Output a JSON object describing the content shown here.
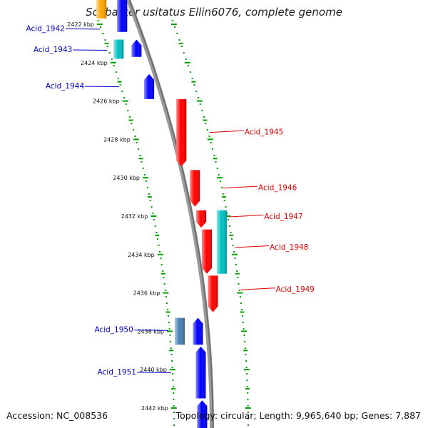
{
  "title": "Solibacter usitatus Ellin6076, complete genome",
  "footer": {
    "accession": "Accession: NC_008536",
    "topology": "Topology: circular; Length: 9,965,640 bp; Genes: 7,887"
  },
  "colors": {
    "forward": "#ff0000",
    "reverse": "#0000ff",
    "rna_teal": "#00c0c0",
    "steel": "#4682b4",
    "orange": "#ffa500",
    "backbone": "#808080",
    "ticks": "#00a000",
    "reverse_label": "#0000cc",
    "forward_label": "#dd0000"
  },
  "scale": {
    "unit": "kbp",
    "ticks": [
      {
        "kbp": 2422,
        "label": "2422 kbp"
      },
      {
        "kbp": 2424,
        "label": "2424 kbp"
      },
      {
        "kbp": 2426,
        "label": "2426 kbp"
      },
      {
        "kbp": 2428,
        "label": "2428 kbp"
      },
      {
        "kbp": 2430,
        "label": "2430 kbp"
      },
      {
        "kbp": 2432,
        "label": "2432 kbp"
      },
      {
        "kbp": 2434,
        "label": "2434 kbp"
      },
      {
        "kbp": 2436,
        "label": "2436 kbp"
      },
      {
        "kbp": 2438,
        "label": "2438 kbp"
      },
      {
        "kbp": 2440,
        "label": "2440 kbp"
      },
      {
        "kbp": 2442,
        "label": "2442 kbp"
      }
    ]
  },
  "features": [
    {
      "color": "orange",
      "start": 2420.0,
      "end": 2421.7,
      "strand": "reverse",
      "ring": "outer"
    },
    {
      "color": "reverse",
      "start": 2420.0,
      "end": 2422.4,
      "strand": "reverse",
      "ring": "inner"
    },
    {
      "color": "reverse",
      "start": 2422.8,
      "end": 2423.7,
      "strand": "reverse",
      "ring": "inner"
    },
    {
      "color": "rna_teal",
      "start": 2422.8,
      "end": 2423.8,
      "strand": "none",
      "ring": "outer"
    },
    {
      "color": "reverse",
      "start": 2424.6,
      "end": 2425.9,
      "strand": "reverse",
      "ring": "inner"
    },
    {
      "color": "forward",
      "start": 2425.9,
      "end": 2429.4,
      "strand": "forward",
      "ring": "inner"
    },
    {
      "color": "forward",
      "start": 2429.6,
      "end": 2431.5,
      "strand": "forward",
      "ring": "inner"
    },
    {
      "color": "forward",
      "start": 2431.7,
      "end": 2432.6,
      "strand": "forward",
      "ring": "inner"
    },
    {
      "color": "rna_teal",
      "start": 2431.7,
      "end": 2435.0,
      "strand": "none",
      "ring": "outer"
    },
    {
      "color": "forward",
      "start": 2432.7,
      "end": 2435.0,
      "strand": "forward",
      "ring": "inner"
    },
    {
      "color": "forward",
      "start": 2435.1,
      "end": 2437.0,
      "strand": "forward",
      "ring": "inner"
    },
    {
      "color": "steel",
      "start": 2437.3,
      "end": 2438.7,
      "strand": "none",
      "ring": "outer"
    },
    {
      "color": "reverse",
      "start": 2437.3,
      "end": 2438.7,
      "strand": "reverse",
      "ring": "inner"
    },
    {
      "color": "reverse",
      "start": 2438.8,
      "end": 2441.5,
      "strand": "reverse",
      "ring": "inner"
    },
    {
      "color": "reverse",
      "start": 2441.6,
      "end": 2443.5,
      "strand": "reverse",
      "ring": "inner"
    }
  ],
  "gene_labels": [
    {
      "text": "Acid_1942",
      "strand": "reverse",
      "kbp": 2422.2
    },
    {
      "text": "Acid_1943",
      "strand": "reverse",
      "kbp": 2423.3
    },
    {
      "text": "Acid_1944",
      "strand": "reverse",
      "kbp": 2425.2
    },
    {
      "text": "Acid_1945",
      "strand": "forward",
      "kbp": 2427.6
    },
    {
      "text": "Acid_1946",
      "strand": "forward",
      "kbp": 2430.5
    },
    {
      "text": "Acid_1947",
      "strand": "forward",
      "kbp": 2432.0
    },
    {
      "text": "Acid_1948",
      "strand": "forward",
      "kbp": 2433.6
    },
    {
      "text": "Acid_1949",
      "strand": "forward",
      "kbp": 2435.8
    },
    {
      "text": "Acid_1950",
      "strand": "reverse",
      "kbp": 2437.9
    },
    {
      "text": "Acid_1951",
      "strand": "reverse",
      "kbp": 2440.1
    }
  ]
}
